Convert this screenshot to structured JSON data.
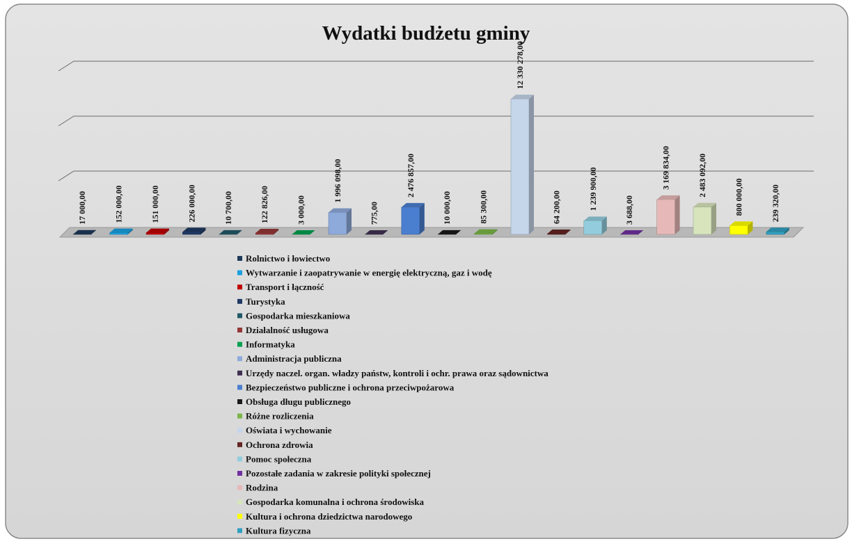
{
  "chart_data": {
    "type": "bar3d",
    "title": "Wydatki budżetu gminy",
    "categories": [
      "Rolnictwo i łowiectwo",
      "Wytwarzanie i zaopatrywanie w energię elektryczną, gaz i wodę",
      "Transport i łączność",
      "Turystyka",
      "Gospodarka mieszkaniowa",
      "Działalność usługowa",
      "Informatyka",
      "Administracja publiczna",
      "Urzędy naczel. organ. władzy państw, kontroli i ochr. prawa oraz sądownictwa",
      "Bezpieczeństwo publiczne i ochrona przeciwpożarowa",
      "Obsługa długu publicznego",
      "Różne rozliczenia",
      "Oświata i wychowanie",
      "Ochrona zdrowia",
      "Pomoc społeczna",
      "Pozostałe zadania w zakresie polityki społecznej",
      "Rodzina",
      "Gospodarka komunalna i ochrona środowiska",
      "Kultura i ochrona dziedzictwa narodowego",
      "Kultura fizyczna"
    ],
    "values": [
      17000,
      152000,
      151000,
      226000,
      10700,
      122826,
      3000,
      1996098,
      775,
      2476857,
      10000,
      85300,
      12330278,
      64200,
      1239900,
      3688,
      3169834,
      2483092,
      800000,
      239320
    ],
    "value_labels": [
      "17 000,00",
      "152 000,00",
      "151 000,00",
      "226 000,00",
      "10 700,00",
      "122 826,00",
      "3 000,00",
      "1 996 098,00",
      "775,00",
      "2 476 857,00",
      "10 000,00",
      "85 300,00",
      "12 330 278,00",
      "64 200,00",
      "1 239 900,00",
      "3 688,00",
      "3 169 834,00",
      "2 483 092,00",
      "800 000,00",
      "239 320,00"
    ],
    "colors": [
      "#1f3a5a",
      "#1aa0e0",
      "#c00000",
      "#1f3864",
      "#215968",
      "#953735",
      "#00a050",
      "#8eaadb",
      "#403152",
      "#4a7fd0",
      "#1a1a1a",
      "#7ab648",
      "#c5d5ea",
      "#632523",
      "#93cddd",
      "#7030a0",
      "#e6b9b8",
      "#d7e4bc",
      "#ffff00",
      "#31a0c0"
    ],
    "ylim": [
      0,
      15000000
    ],
    "yticks": [
      0,
      5000000,
      10000000,
      15000000
    ],
    "grid": true
  }
}
